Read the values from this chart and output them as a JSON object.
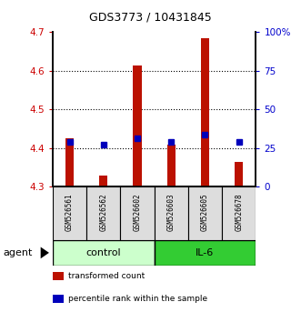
{
  "title": "GDS3773 / 10431845",
  "samples": [
    "GSM526561",
    "GSM526562",
    "GSM526602",
    "GSM526603",
    "GSM526605",
    "GSM526678"
  ],
  "bar_base": 4.3,
  "bar_tops": [
    4.425,
    4.33,
    4.615,
    4.41,
    4.685,
    4.365
  ],
  "percentile_values": [
    4.415,
    4.41,
    4.425,
    4.415,
    4.435,
    4.415
  ],
  "ylim": [
    4.3,
    4.7
  ],
  "yticks_left": [
    4.3,
    4.4,
    4.5,
    4.6,
    4.7
  ],
  "yticks_right": [
    0,
    25,
    50,
    75,
    100
  ],
  "groups": [
    {
      "label": "control",
      "start": 0,
      "end": 3,
      "color": "#ccffcc"
    },
    {
      "label": "IL-6",
      "start": 3,
      "end": 6,
      "color": "#33cc33"
    }
  ],
  "bar_color": "#bb1100",
  "percentile_color": "#0000bb",
  "agent_label": "agent",
  "legend": [
    {
      "label": "transformed count",
      "color": "#bb1100"
    },
    {
      "label": "percentile rank within the sample",
      "color": "#0000bb"
    }
  ],
  "left_axis_color": "#cc0000",
  "right_axis_color": "#0000cc",
  "sample_box_color": "#dddddd",
  "grid_dotted_ticks": [
    4.4,
    4.5,
    4.6
  ],
  "bar_width": 0.25
}
